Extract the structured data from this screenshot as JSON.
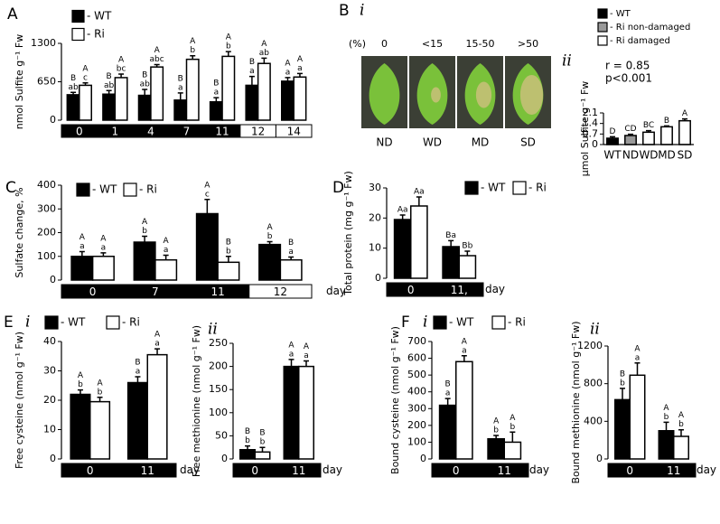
{
  "photo_panel": {
    "panel": "B",
    "subpanel": "i",
    "header": [
      "(%)",
      "0",
      "<15",
      "15-50",
      ">50"
    ],
    "labels": [
      "ND",
      "WD",
      "MD",
      "SD"
    ]
  },
  "chart_data": [
    {
      "type": "bar",
      "panel": "A",
      "y_label": "nmol Sulfite g⁻¹ Fw",
      "categories": [
        "0",
        "1",
        "4",
        "7",
        "11",
        "12",
        "14"
      ],
      "band_colors": [
        "#000",
        "#000",
        "#000",
        "#000",
        "#000",
        "#fff",
        "#fff"
      ],
      "ylim": [
        0,
        1300
      ],
      "yticks": [
        0,
        650,
        1300
      ],
      "series": [
        {
          "name": "- WT",
          "color": "#000",
          "values": [
            430,
            440,
            420,
            340,
            310,
            590,
            660
          ],
          "errors": [
            40,
            60,
            100,
            120,
            70,
            150,
            60
          ],
          "letters": [
            [
              "B",
              "ab"
            ],
            [
              "B",
              "ab"
            ],
            [
              "B",
              "ab"
            ],
            [
              "B",
              "a"
            ],
            [
              "B",
              "a"
            ],
            [
              "B",
              "a"
            ],
            [
              "A",
              "a"
            ]
          ]
        },
        {
          "name": "- Ri",
          "color": "#fff",
          "values": [
            590,
            720,
            900,
            1030,
            1080,
            960,
            730
          ],
          "errors": [
            40,
            60,
            40,
            60,
            80,
            90,
            60
          ],
          "letters": [
            [
              "A",
              "c"
            ],
            [
              "A",
              "bc"
            ],
            [
              "A",
              "abc"
            ],
            [
              "A",
              "b"
            ],
            [
              "A",
              "b"
            ],
            [
              "A",
              "ab"
            ],
            [
              "A",
              "a"
            ]
          ]
        }
      ]
    },
    {
      "type": "bar",
      "subpanel": "ii",
      "y_label": "μmol Sulfite g⁻¹ Fw",
      "categories": [
        "WT",
        "ND",
        "WD",
        "MD",
        "SD"
      ],
      "values": [
        0.42,
        0.6,
        0.82,
        1.18,
        1.58
      ],
      "errors": [
        0.1,
        0.08,
        0.1,
        0.06,
        0.12
      ],
      "colors": [
        "#000",
        "#999",
        "#fff",
        "#fff",
        "#fff"
      ],
      "letters": [
        [
          "D"
        ],
        [
          "CD"
        ],
        [
          "BC"
        ],
        [
          "B"
        ],
        [
          "A"
        ]
      ],
      "legend": [
        {
          "name": "- WT",
          "color": "#000"
        },
        {
          "name": "- Ri non-damaged",
          "color": "#999"
        },
        {
          "name": "- Ri damaged",
          "color": "#fff"
        }
      ],
      "annotations": [
        "r = 0.85",
        "p<0.001"
      ],
      "ylim": [
        0,
        2.1
      ],
      "yticks": [
        0,
        0.7,
        1.4,
        2.1
      ]
    },
    {
      "type": "bar",
      "panel": "C",
      "y_label": "Sulfate change, %",
      "x_label": "day",
      "categories": [
        "0",
        "7",
        "11",
        "12"
      ],
      "band_colors": [
        "#000",
        "#000",
        "#000",
        "#fff"
      ],
      "ylim": [
        0,
        400
      ],
      "yticks": [
        0,
        100,
        200,
        300,
        400
      ],
      "series": [
        {
          "name": "- WT",
          "color": "#000",
          "values": [
            100,
            160,
            280,
            150
          ],
          "errors": [
            20,
            25,
            60,
            12
          ],
          "letters": [
            [
              "A",
              "a"
            ],
            [
              "A",
              "b"
            ],
            [
              "A",
              "c"
            ],
            [
              "A",
              "b"
            ]
          ]
        },
        {
          "name": "- Ri",
          "color": "#fff",
          "values": [
            100,
            85,
            75,
            85
          ],
          "errors": [
            15,
            20,
            25,
            12
          ],
          "letters": [
            [
              "A",
              "a"
            ],
            [
              "A",
              "a"
            ],
            [
              "B",
              "b"
            ],
            [
              "B",
              "a"
            ]
          ]
        }
      ]
    },
    {
      "type": "bar",
      "panel": "D",
      "y_label": "Total protein (mg g⁻¹ Fw)",
      "x_label": "day",
      "categories": [
        "0",
        "11,"
      ],
      "band_colors": [
        "#000",
        "#000"
      ],
      "ylim": [
        0,
        30
      ],
      "yticks": [
        0,
        10,
        20,
        30
      ],
      "series": [
        {
          "name": "- WT",
          "color": "#000",
          "values": [
            19.5,
            10.5
          ],
          "errors": [
            1.5,
            2
          ],
          "letters": [
            [
              "Aa"
            ],
            [
              "Ba"
            ]
          ]
        },
        {
          "name": "- Ri",
          "color": "#fff",
          "values": [
            24,
            7.5
          ],
          "errors": [
            3,
            1.5
          ],
          "letters": [
            [
              "Aa"
            ],
            [
              "Bb"
            ]
          ]
        }
      ]
    },
    {
      "type": "bar",
      "panel": "E",
      "subpanel": "i",
      "y_label": "Free cysteine (nmol g⁻¹ Fw)",
      "x_label": "day",
      "categories": [
        "0",
        "11"
      ],
      "band_colors": [
        "#000",
        "#000"
      ],
      "ylim": [
        0,
        40
      ],
      "yticks": [
        0,
        10,
        20,
        30,
        40
      ],
      "series": [
        {
          "name": "- WT",
          "color": "#000",
          "values": [
            22,
            26
          ],
          "errors": [
            1.5,
            2
          ],
          "letters": [
            [
              "A",
              "b"
            ],
            [
              "B",
              "a"
            ]
          ]
        },
        {
          "name": "- Ri",
          "color": "#fff",
          "values": [
            19.5,
            35.5
          ],
          "errors": [
            1.5,
            2
          ],
          "letters": [
            [
              "A",
              "b"
            ],
            [
              "A",
              "a"
            ]
          ]
        }
      ]
    },
    {
      "type": "bar",
      "subpanel": "ii",
      "y_label": "Free methionine (nmol g⁻¹ Fw)",
      "x_label": "day",
      "categories": [
        "0",
        "11"
      ],
      "band_colors": [
        "#000",
        "#000"
      ],
      "ylim": [
        0,
        250
      ],
      "yticks": [
        0,
        50,
        100,
        150,
        200,
        250
      ],
      "series": [
        {
          "color": "#000",
          "values": [
            20,
            200
          ],
          "errors": [
            8,
            15
          ],
          "letters": [
            [
              "B",
              "b"
            ],
            [
              "A",
              "a"
            ]
          ]
        },
        {
          "color": "#fff",
          "values": [
            15,
            200
          ],
          "errors": [
            10,
            12
          ],
          "letters": [
            [
              "B",
              "b"
            ],
            [
              "A",
              "a"
            ]
          ]
        }
      ]
    },
    {
      "type": "bar",
      "panel": "F",
      "subpanel": "i",
      "y_label": "Bound cysteine (nmol g⁻¹ Fw)",
      "x_label": "day",
      "categories": [
        "0",
        "11"
      ],
      "band_colors": [
        "#000",
        "#000"
      ],
      "ylim": [
        0,
        700
      ],
      "yticks": [
        0,
        100,
        200,
        300,
        400,
        500,
        600,
        700
      ],
      "series": [
        {
          "name": "- WT",
          "color": "#000",
          "values": [
            320,
            120
          ],
          "errors": [
            40,
            20
          ],
          "letters": [
            [
              "B",
              "a"
            ],
            [
              "A",
              "b"
            ]
          ]
        },
        {
          "name": "- Ri",
          "color": "#fff",
          "values": [
            580,
            100
          ],
          "errors": [
            35,
            60
          ],
          "letters": [
            [
              "A",
              "a"
            ],
            [
              "A",
              "b"
            ]
          ]
        }
      ]
    },
    {
      "type": "bar",
      "subpanel": "ii",
      "y_label": "Bound methionine (nmol g⁻¹ Fw)",
      "x_label": "day",
      "categories": [
        "0",
        "11"
      ],
      "band_colors": [
        "#000",
        "#000"
      ],
      "ylim": [
        0,
        1200
      ],
      "yticks": [
        0,
        400,
        800,
        1200
      ],
      "series": [
        {
          "color": "#000",
          "values": [
            630,
            300
          ],
          "errors": [
            120,
            90
          ],
          "letters": [
            [
              "B",
              "b"
            ],
            [
              "A",
              "b"
            ]
          ]
        },
        {
          "color": "#fff",
          "values": [
            890,
            240
          ],
          "errors": [
            130,
            70
          ],
          "letters": [
            [
              "A",
              "a"
            ],
            [
              "A",
              "b"
            ]
          ]
        }
      ]
    }
  ]
}
